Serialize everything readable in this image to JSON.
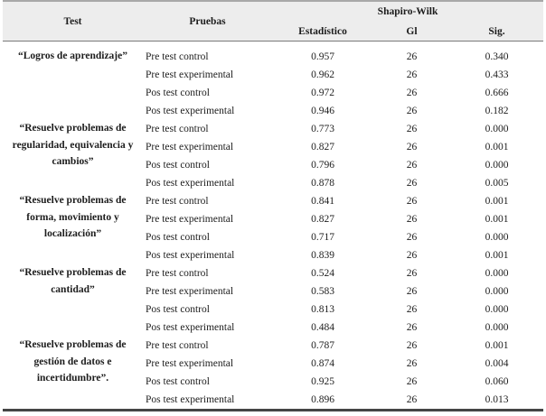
{
  "table": {
    "header": {
      "test": "Test",
      "pruebas": "Pruebas",
      "shapiro_wilk": "Shapiro-Wilk",
      "estadistico": "Estadístico",
      "gl": "Gl",
      "sig": "Sig."
    },
    "groups": [
      {
        "test": "“Logros de aprendizaje”",
        "rows": [
          {
            "prueba": "Pre test control",
            "estadistico": "0.957",
            "gl": "26",
            "sig": "0.340"
          },
          {
            "prueba": "Pre test experimental",
            "estadistico": "0.962",
            "gl": "26",
            "sig": "0.433"
          },
          {
            "prueba": "Pos test control",
            "estadistico": "0.972",
            "gl": "26",
            "sig": "0.666"
          },
          {
            "prueba": "Pos test experimental",
            "estadistico": "0.946",
            "gl": "26",
            "sig": "0.182"
          }
        ]
      },
      {
        "test": "“Resuelve problemas de regularidad, equivalencia y cambios”",
        "rows": [
          {
            "prueba": "Pre test control",
            "estadistico": "0.773",
            "gl": "26",
            "sig": "0.000"
          },
          {
            "prueba": "Pre test experimental",
            "estadistico": "0.827",
            "gl": "26",
            "sig": "0.001"
          },
          {
            "prueba": "Pos test control",
            "estadistico": "0.796",
            "gl": "26",
            "sig": "0.000"
          },
          {
            "prueba": "Pos test experimental",
            "estadistico": "0.878",
            "gl": "26",
            "sig": "0.005"
          }
        ]
      },
      {
        "test": "“Resuelve problemas de forma, movimiento y localización”",
        "rows": [
          {
            "prueba": "Pre test control",
            "estadistico": "0.841",
            "gl": "26",
            "sig": "0.001"
          },
          {
            "prueba": "Pre test experimental",
            "estadistico": "0.827",
            "gl": "26",
            "sig": "0.001"
          },
          {
            "prueba": "Pos test control",
            "estadistico": "0.717",
            "gl": "26",
            "sig": "0.000"
          },
          {
            "prueba": "Pos test experimental",
            "estadistico": "0.839",
            "gl": "26",
            "sig": "0.001"
          }
        ]
      },
      {
        "test": "“Resuelve problemas de cantidad”",
        "rows": [
          {
            "prueba": "Pre test control",
            "estadistico": "0.524",
            "gl": "26",
            "sig": "0.000"
          },
          {
            "prueba": "Pre test experimental",
            "estadistico": "0.583",
            "gl": "26",
            "sig": "0.000"
          },
          {
            "prueba": "Pos test control",
            "estadistico": "0.813",
            "gl": "26",
            "sig": "0.000"
          },
          {
            "prueba": "Pos test experimental",
            "estadistico": "0.484",
            "gl": "26",
            "sig": "0.000"
          }
        ]
      },
      {
        "test": "“Resuelve problemas de gestión de datos e incertidumbre”.",
        "rows": [
          {
            "prueba": "Pre test control",
            "estadistico": "0.787",
            "gl": "26",
            "sig": "0.001"
          },
          {
            "prueba": "Pre test experimental",
            "estadistico": "0.874",
            "gl": "26",
            "sig": "0.004"
          },
          {
            "prueba": "Pos test control",
            "estadistico": "0.925",
            "gl": "26",
            "sig": "0.060"
          },
          {
            "prueba": "Pos test experimental",
            "estadistico": "0.896",
            "gl": "26",
            "sig": "0.013"
          }
        ]
      }
    ],
    "colors": {
      "header_bg": "#ededed",
      "rule_top": "#a8a8a8",
      "rule_mid": "#7b7b7b",
      "rule_bottom": "#454545",
      "text": "#1d1d1d"
    }
  }
}
